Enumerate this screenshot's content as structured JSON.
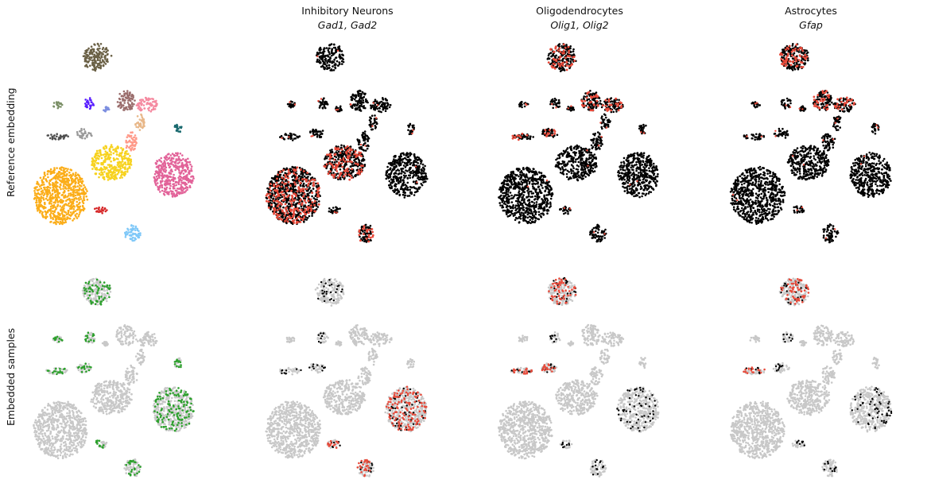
{
  "figure": {
    "row_labels": [
      "Reference embedding",
      "Embedded samples"
    ],
    "columns": [
      {
        "title": "",
        "genes": ""
      },
      {
        "title": "Inhibitory Neurons",
        "genes": "Gad1, Gad2"
      },
      {
        "title": "Oligodendrocytes",
        "genes": "Olig1, Olig2"
      },
      {
        "title": "Astrocytes",
        "genes": "Gfap"
      }
    ]
  },
  "colors": {
    "expressed": "#e84a3a",
    "reference_points": "#000000",
    "background_points": "#c8c8c8",
    "embedded_samples": "#2ca02c"
  },
  "chart_data": {
    "type": "scatter",
    "layout": "2x4 grid of embedding scatter plots, no axes",
    "clusters": [
      {
        "id": "c1",
        "color": "#6b6146",
        "cx": 122,
        "cy": 72,
        "rx": 18,
        "ry": 17
      },
      {
        "id": "c2",
        "color": "#7a8f66",
        "cx": 73,
        "cy": 132,
        "rx": 6,
        "ry": 4
      },
      {
        "id": "c3",
        "color": "#5a1fff",
        "cx": 113,
        "cy": 130,
        "rx": 7,
        "ry": 7
      },
      {
        "id": "c4",
        "color": "#7d8fe0",
        "cx": 133,
        "cy": 137,
        "rx": 4,
        "ry": 3
      },
      {
        "id": "c5",
        "color": "#9a6d6c",
        "cx": 158,
        "cy": 127,
        "rx": 12,
        "ry": 13
      },
      {
        "id": "c6",
        "color": "#f58aa0",
        "cx": 185,
        "cy": 132,
        "rx": 14,
        "ry": 9
      },
      {
        "id": "c7",
        "color": "#e8b88a",
        "cx": 176,
        "cy": 154,
        "rx": 6,
        "ry": 10
      },
      {
        "id": "c8",
        "color": "#19696e",
        "cx": 224,
        "cy": 162,
        "rx": 5,
        "ry": 7
      },
      {
        "id": "c9",
        "color": "#4f4f4f",
        "cx": 72,
        "cy": 172,
        "rx": 14,
        "ry": 4
      },
      {
        "id": "c10",
        "color": "#9a9a9a",
        "cx": 106,
        "cy": 168,
        "rx": 10,
        "ry": 6
      },
      {
        "id": "c11",
        "color": "#f7d21e",
        "cx": 140,
        "cy": 205,
        "rx": 26,
        "ry": 22
      },
      {
        "id": "c12",
        "color": "#ff9a8a",
        "cx": 165,
        "cy": 178,
        "rx": 8,
        "ry": 12
      },
      {
        "id": "c13",
        "color": "#fbad18",
        "cx": 76,
        "cy": 246,
        "rx": 34,
        "ry": 36
      },
      {
        "id": "c14",
        "color": "#e26399",
        "cx": 218,
        "cy": 220,
        "rx": 26,
        "ry": 28
      },
      {
        "id": "c15",
        "color": "#d62728",
        "cx": 127,
        "cy": 264,
        "rx": 8,
        "ry": 5
      },
      {
        "id": "c16",
        "color": "#7fc8f8",
        "cx": 167,
        "cy": 294,
        "rx": 10,
        "ry": 11
      }
    ],
    "expression_clusters": {
      "inhibitory_neurons": [
        "c13",
        "c16",
        "c11"
      ],
      "oligodendrocytes": [
        "c1",
        "c5",
        "c6",
        "c9",
        "c10"
      ],
      "astrocytes": [
        "c1",
        "c5",
        "c6"
      ]
    },
    "embedded_clusters": {
      "inhibitory_neurons": [
        "c15",
        "c16",
        "c14"
      ],
      "oligodendrocytes": [
        "c1",
        "c9",
        "c10"
      ],
      "astrocytes": [
        "c1",
        "c9"
      ]
    }
  }
}
